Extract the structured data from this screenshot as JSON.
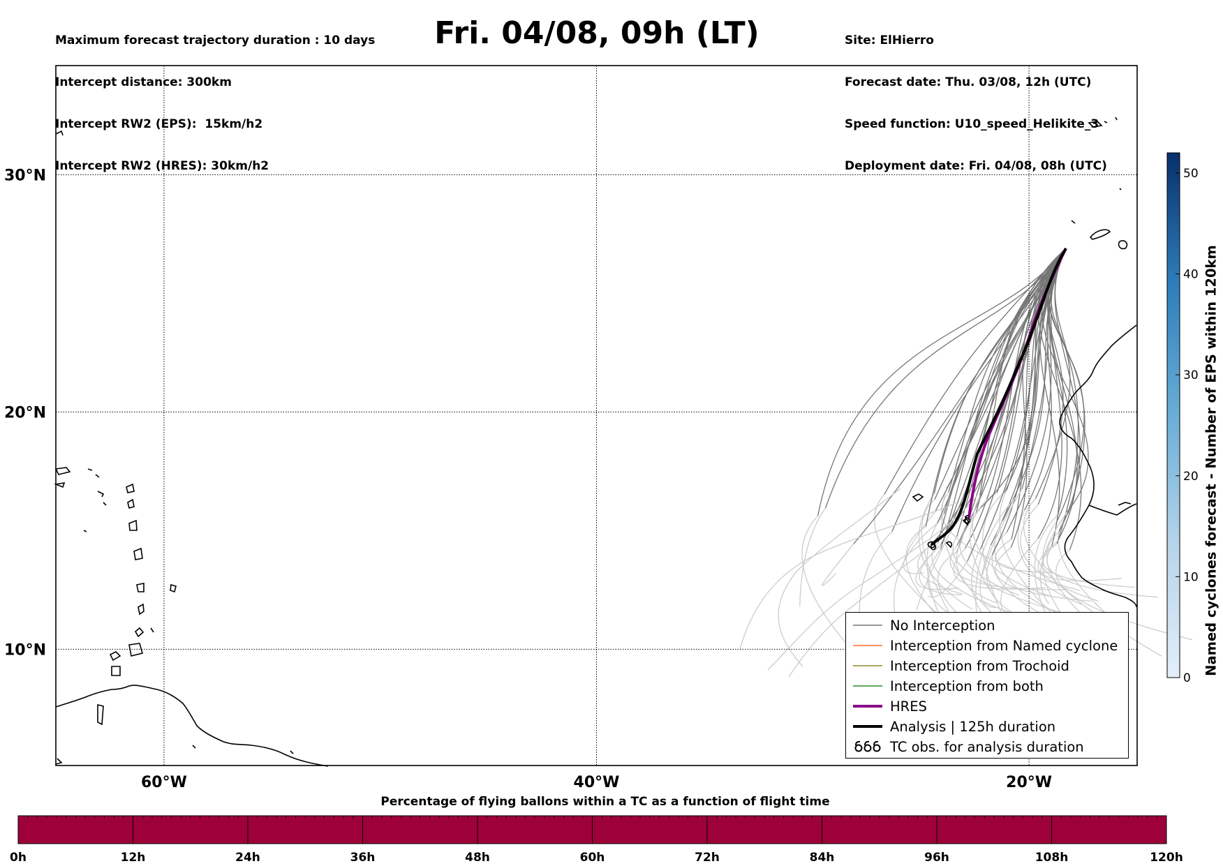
{
  "header_left": [
    "Maximum forecast trajectory duration : 10 days",
    "Intercept distance: 300km",
    "Intercept RW2 (EPS):  15km/h2",
    "Intercept RW2 (HRES): 30km/h2"
  ],
  "title": "Fri. 04/08, 09h (LT)",
  "header_right": [
    "Site: ElHierro",
    "Forecast date: Thu. 03/08, 12h (UTC)",
    "Speed function: U10_speed_Helikite_3",
    "Deployment date: Fri. 04/08, 08h (UTC)"
  ],
  "map": {
    "lat_labels": [
      "30°N",
      "20°N",
      "10°N"
    ],
    "lon_labels": [
      "60°W",
      "40°W",
      "20°W"
    ],
    "grid_lats": [
      30,
      20,
      10
    ],
    "grid_lons": [
      -60,
      -40,
      -20
    ],
    "extent": {
      "lon_min": -65,
      "lon_max": -15,
      "lat_min": 5.1,
      "lat_max": 34.6
    },
    "colors": {
      "no_interception": "#777777",
      "no_interception_late": "#cccccc",
      "named_cyclone": "#ff6a2a",
      "trochoid": "#8a8a2a",
      "both": "#2a8a2a",
      "hres": "#8b008b",
      "analysis": "#000000"
    }
  },
  "legend": [
    {
      "label": "No Interception",
      "symbol": "line-gray"
    },
    {
      "label": "Interception from Named cyclone",
      "symbol": "line-orange"
    },
    {
      "label": "Interception from Trochoid",
      "symbol": "line-olive"
    },
    {
      "label": "Interception from both",
      "symbol": "line-green"
    },
    {
      "label": "HRES",
      "symbol": "line-purple-thick"
    },
    {
      "label": "Analysis | 125h duration",
      "symbol": "line-black-thick"
    },
    {
      "label": "TC obs. for analysis duration",
      "symbol": "cyclone-icons"
    }
  ],
  "colorbar": {
    "label": "Named cyclones forecast - Number of EPS within 120km",
    "ticks": [
      "0",
      "10",
      "20",
      "30",
      "40",
      "50"
    ],
    "min": 0,
    "max": 52,
    "color_low": "#e3eef9",
    "color_high": "#08306b"
  },
  "flight_bar": {
    "title": "Percentage of flying ballons within a TC as a function of flight time",
    "ticks": [
      "0h",
      "12h",
      "24h",
      "36h",
      "48h",
      "60h",
      "72h",
      "84h",
      "96h",
      "108h",
      "120h"
    ],
    "color": "#9e003a"
  }
}
